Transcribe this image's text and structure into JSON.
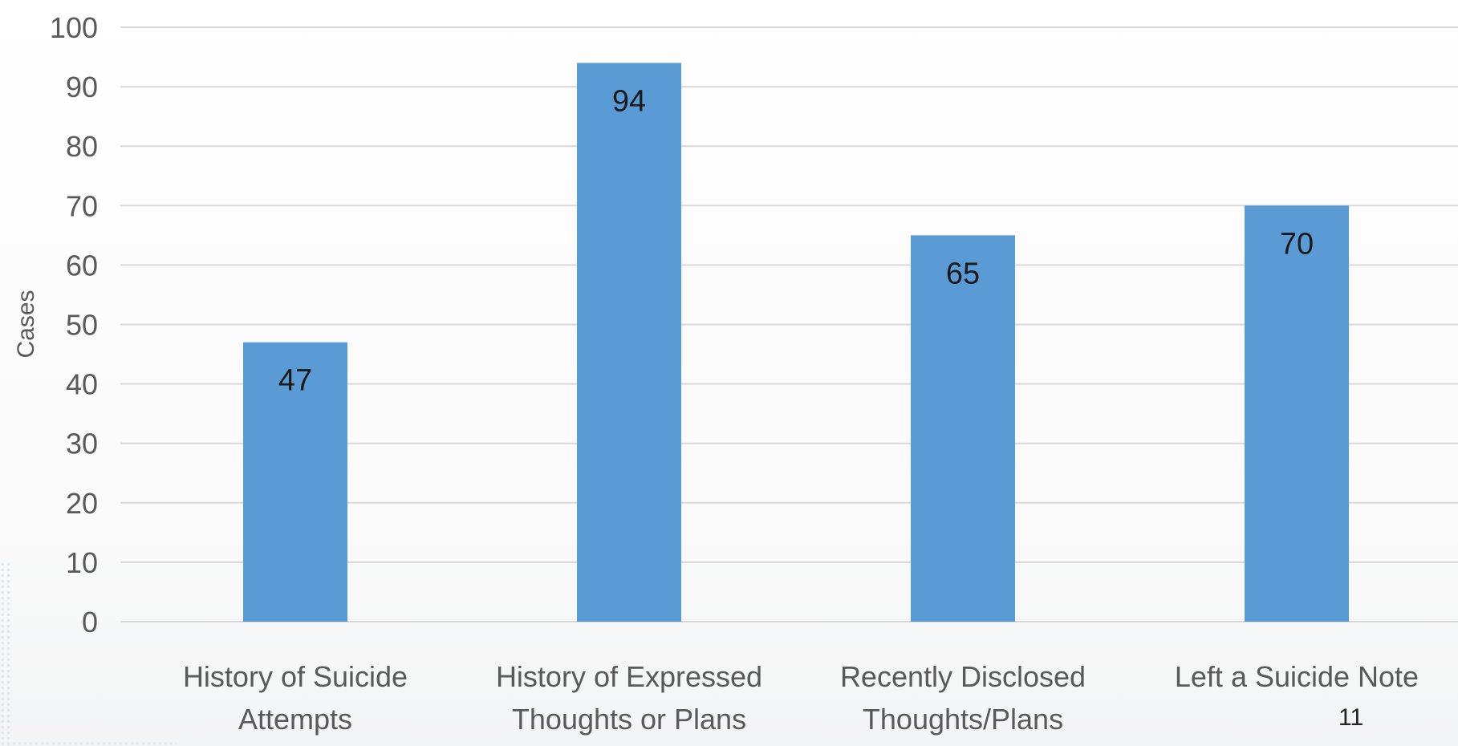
{
  "slide": {
    "page_number": "11"
  },
  "colors": {
    "bar": "#5b9bd5",
    "grid": "#d9d9d9",
    "tick_text": "#595959",
    "data_label": "#1a1a1a",
    "axis_title": "#595959"
  },
  "chart_data": {
    "type": "bar",
    "title": "",
    "xlabel": "",
    "ylabel": "Cases",
    "ylim": [
      0,
      100
    ],
    "ytick_step": 10,
    "grid": true,
    "legend": "none",
    "categories": [
      [
        "History of Suicide",
        "Attempts"
      ],
      [
        "History of Expressed",
        "Thoughts or Plans"
      ],
      [
        "Recently Disclosed",
        "Thoughts/Plans"
      ],
      [
        "Left a Suicide Note"
      ]
    ],
    "values": [
      47,
      94,
      65,
      70
    ],
    "data_labels": [
      "47",
      "94",
      "65",
      "70"
    ]
  }
}
